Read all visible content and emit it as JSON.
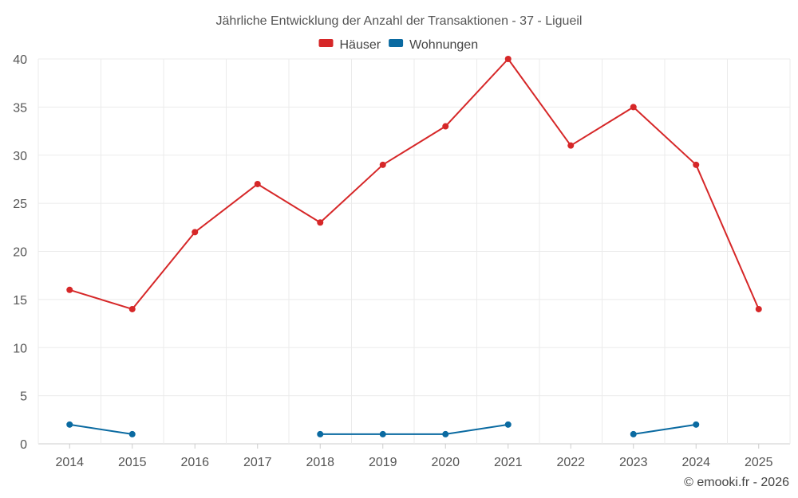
{
  "chart_data": {
    "type": "line",
    "title": "Jährliche Entwicklung der Anzahl der Transaktionen - 37 - Ligueil",
    "categories": [
      "2014",
      "2015",
      "2016",
      "2017",
      "2018",
      "2019",
      "2020",
      "2021",
      "2022",
      "2023",
      "2024",
      "2025"
    ],
    "series": [
      {
        "name": "Häuser",
        "color": "#d62728",
        "values": [
          16,
          14,
          22,
          27,
          23,
          29,
          33,
          40,
          31,
          35,
          29,
          14
        ]
      },
      {
        "name": "Wohnungen",
        "color": "#0a6aa1",
        "values": [
          2,
          1,
          null,
          null,
          1,
          1,
          1,
          2,
          null,
          1,
          2,
          null
        ]
      }
    ],
    "ylim": [
      0,
      40
    ],
    "yticks": [
      0,
      5,
      10,
      15,
      20,
      25,
      30,
      35,
      40
    ],
    "grid": true,
    "legend": "top-center",
    "xlabel": "",
    "ylabel": ""
  },
  "credit": "© emooki.fr - 2026"
}
